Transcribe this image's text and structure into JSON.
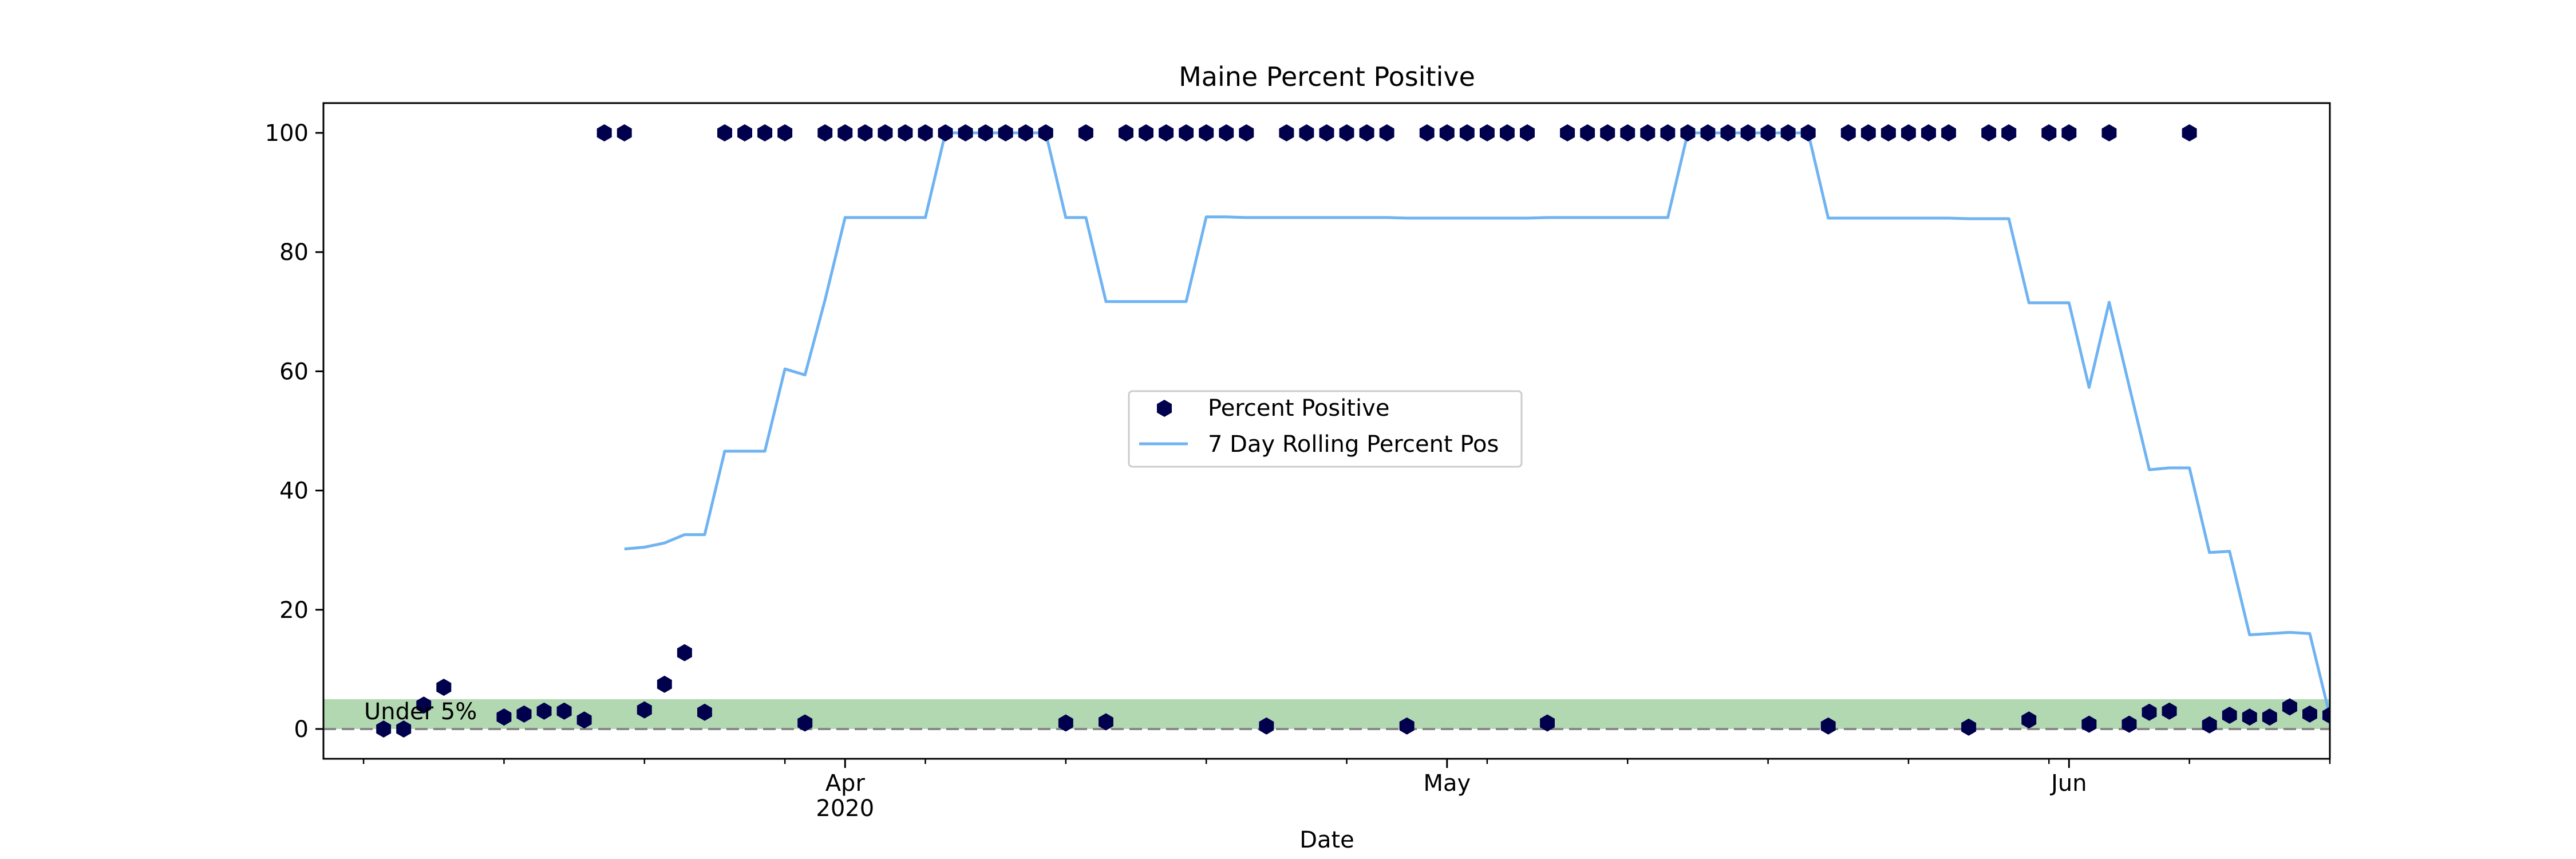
{
  "chart_data": {
    "type": "line",
    "title": "Maine Percent Positive",
    "xlabel": "Date",
    "ylabel": "",
    "ylim": [
      -5,
      105
    ],
    "xlim": [
      "2020-03-06",
      "2020-06-14"
    ],
    "y_ticks": [
      0,
      20,
      40,
      60,
      80,
      100
    ],
    "x_major_ticks": [
      {
        "date": "2020-04-01",
        "label": "Apr",
        "sublabel": "2020"
      },
      {
        "date": "2020-05-01",
        "label": "May",
        "sublabel": ""
      },
      {
        "date": "2020-06-01",
        "label": "Jun",
        "sublabel": ""
      }
    ],
    "x_minor_tick_dates": [
      "2020-03-08",
      "2020-03-15",
      "2020-03-22",
      "2020-03-29",
      "2020-04-05",
      "2020-04-12",
      "2020-04-19",
      "2020-04-26",
      "2020-05-03",
      "2020-05-10",
      "2020-05-17",
      "2020-05-24",
      "2020-05-31",
      "2020-06-07",
      "2020-06-14"
    ],
    "grid": false,
    "legend_position": "center",
    "colors": {
      "points": "#00004d",
      "rolling_line": "#6fb3f2",
      "band_fill": "#b2d8b2",
      "reference_line": "#888888"
    },
    "band": {
      "y0": 0,
      "y1": 5,
      "label": "Under 5%"
    },
    "reference_line_y": 0,
    "series": [
      {
        "name": "Percent Positive",
        "kind": "scatter",
        "points": [
          {
            "x": "2020-03-09",
            "y": 0
          },
          {
            "x": "2020-03-10",
            "y": 0
          },
          {
            "x": "2020-03-11",
            "y": 4
          },
          {
            "x": "2020-03-12",
            "y": 7
          },
          {
            "x": "2020-03-15",
            "y": 2
          },
          {
            "x": "2020-03-16",
            "y": 2.5
          },
          {
            "x": "2020-03-17",
            "y": 3
          },
          {
            "x": "2020-03-18",
            "y": 3
          },
          {
            "x": "2020-03-19",
            "y": 1.5
          },
          {
            "x": "2020-03-20",
            "y": 100
          },
          {
            "x": "2020-03-21",
            "y": 100
          },
          {
            "x": "2020-03-22",
            "y": 3.2
          },
          {
            "x": "2020-03-23",
            "y": 7.5
          },
          {
            "x": "2020-03-24",
            "y": 12.8
          },
          {
            "x": "2020-03-25",
            "y": 2.8
          },
          {
            "x": "2020-03-26",
            "y": 100
          },
          {
            "x": "2020-03-27",
            "y": 100
          },
          {
            "x": "2020-03-28",
            "y": 100
          },
          {
            "x": "2020-03-29",
            "y": 100
          },
          {
            "x": "2020-03-30",
            "y": 1
          },
          {
            "x": "2020-03-31",
            "y": 100
          },
          {
            "x": "2020-04-01",
            "y": 100
          },
          {
            "x": "2020-04-02",
            "y": 100
          },
          {
            "x": "2020-04-03",
            "y": 100
          },
          {
            "x": "2020-04-04",
            "y": 100
          },
          {
            "x": "2020-04-05",
            "y": 100
          },
          {
            "x": "2020-04-06",
            "y": 100
          },
          {
            "x": "2020-04-07",
            "y": 100
          },
          {
            "x": "2020-04-08",
            "y": 100
          },
          {
            "x": "2020-04-09",
            "y": 100
          },
          {
            "x": "2020-04-10",
            "y": 100
          },
          {
            "x": "2020-04-11",
            "y": 100
          },
          {
            "x": "2020-04-12",
            "y": 1
          },
          {
            "x": "2020-04-13",
            "y": 100
          },
          {
            "x": "2020-04-14",
            "y": 1.2
          },
          {
            "x": "2020-04-15",
            "y": 100
          },
          {
            "x": "2020-04-16",
            "y": 100
          },
          {
            "x": "2020-04-17",
            "y": 100
          },
          {
            "x": "2020-04-18",
            "y": 100
          },
          {
            "x": "2020-04-19",
            "y": 100
          },
          {
            "x": "2020-04-20",
            "y": 100
          },
          {
            "x": "2020-04-21",
            "y": 100
          },
          {
            "x": "2020-04-22",
            "y": 0.5
          },
          {
            "x": "2020-04-23",
            "y": 100
          },
          {
            "x": "2020-04-24",
            "y": 100
          },
          {
            "x": "2020-04-25",
            "y": 100
          },
          {
            "x": "2020-04-26",
            "y": 100
          },
          {
            "x": "2020-04-27",
            "y": 100
          },
          {
            "x": "2020-04-28",
            "y": 100
          },
          {
            "x": "2020-04-29",
            "y": 0.5
          },
          {
            "x": "2020-04-30",
            "y": 100
          },
          {
            "x": "2020-05-01",
            "y": 100
          },
          {
            "x": "2020-05-02",
            "y": 100
          },
          {
            "x": "2020-05-03",
            "y": 100
          },
          {
            "x": "2020-05-04",
            "y": 100
          },
          {
            "x": "2020-05-05",
            "y": 100
          },
          {
            "x": "2020-05-06",
            "y": 1
          },
          {
            "x": "2020-05-07",
            "y": 100
          },
          {
            "x": "2020-05-08",
            "y": 100
          },
          {
            "x": "2020-05-09",
            "y": 100
          },
          {
            "x": "2020-05-10",
            "y": 100
          },
          {
            "x": "2020-05-11",
            "y": 100
          },
          {
            "x": "2020-05-12",
            "y": 100
          },
          {
            "x": "2020-05-13",
            "y": 100
          },
          {
            "x": "2020-05-14",
            "y": 100
          },
          {
            "x": "2020-05-15",
            "y": 100
          },
          {
            "x": "2020-05-16",
            "y": 100
          },
          {
            "x": "2020-05-17",
            "y": 100
          },
          {
            "x": "2020-05-18",
            "y": 100
          },
          {
            "x": "2020-05-19",
            "y": 100
          },
          {
            "x": "2020-05-20",
            "y": 0.5
          },
          {
            "x": "2020-05-21",
            "y": 100
          },
          {
            "x": "2020-05-22",
            "y": 100
          },
          {
            "x": "2020-05-23",
            "y": 100
          },
          {
            "x": "2020-05-24",
            "y": 100
          },
          {
            "x": "2020-05-25",
            "y": 100
          },
          {
            "x": "2020-05-26",
            "y": 100
          },
          {
            "x": "2020-05-27",
            "y": 0.3
          },
          {
            "x": "2020-05-28",
            "y": 100
          },
          {
            "x": "2020-05-29",
            "y": 100
          },
          {
            "x": "2020-05-30",
            "y": 1.5
          },
          {
            "x": "2020-05-31",
            "y": 100
          },
          {
            "x": "2020-06-01",
            "y": 100
          },
          {
            "x": "2020-06-02",
            "y": 0.8
          },
          {
            "x": "2020-06-03",
            "y": 100
          },
          {
            "x": "2020-06-04",
            "y": 0.8
          },
          {
            "x": "2020-06-05",
            "y": 2.8
          },
          {
            "x": "2020-06-06",
            "y": 3
          },
          {
            "x": "2020-06-07",
            "y": 100
          },
          {
            "x": "2020-06-08",
            "y": 0.7
          },
          {
            "x": "2020-06-09",
            "y": 2.3
          },
          {
            "x": "2020-06-10",
            "y": 2
          },
          {
            "x": "2020-06-11",
            "y": 2
          },
          {
            "x": "2020-06-12",
            "y": 3.7
          },
          {
            "x": "2020-06-13",
            "y": 2.5
          },
          {
            "x": "2020-06-14",
            "y": 2.3
          },
          {
            "x": "2020-06-15",
            "y": 1.2
          }
        ]
      },
      {
        "name": "7 Day Rolling Percent Pos",
        "kind": "line",
        "points": [
          {
            "x": "2020-03-21",
            "y": 30.2
          },
          {
            "x": "2020-03-22",
            "y": 30.5
          },
          {
            "x": "2020-03-23",
            "y": 31.2
          },
          {
            "x": "2020-03-24",
            "y": 32.6
          },
          {
            "x": "2020-03-25",
            "y": 32.6
          },
          {
            "x": "2020-03-26",
            "y": 46.6
          },
          {
            "x": "2020-03-27",
            "y": 46.6
          },
          {
            "x": "2020-03-28",
            "y": 46.6
          },
          {
            "x": "2020-03-29",
            "y": 60.4
          },
          {
            "x": "2020-03-30",
            "y": 59.4
          },
          {
            "x": "2020-03-31",
            "y": 72
          },
          {
            "x": "2020-04-01",
            "y": 85.8
          },
          {
            "x": "2020-04-02",
            "y": 85.8
          },
          {
            "x": "2020-04-03",
            "y": 85.8
          },
          {
            "x": "2020-04-04",
            "y": 85.8
          },
          {
            "x": "2020-04-05",
            "y": 85.8
          },
          {
            "x": "2020-04-06",
            "y": 100
          },
          {
            "x": "2020-04-07",
            "y": 100
          },
          {
            "x": "2020-04-08",
            "y": 100
          },
          {
            "x": "2020-04-09",
            "y": 100
          },
          {
            "x": "2020-04-10",
            "y": 100
          },
          {
            "x": "2020-04-11",
            "y": 100
          },
          {
            "x": "2020-04-12",
            "y": 85.8
          },
          {
            "x": "2020-04-13",
            "y": 85.8
          },
          {
            "x": "2020-04-14",
            "y": 71.7
          },
          {
            "x": "2020-04-15",
            "y": 71.7
          },
          {
            "x": "2020-04-16",
            "y": 71.7
          },
          {
            "x": "2020-04-17",
            "y": 71.7
          },
          {
            "x": "2020-04-18",
            "y": 71.7
          },
          {
            "x": "2020-04-19",
            "y": 85.9
          },
          {
            "x": "2020-04-20",
            "y": 85.9
          },
          {
            "x": "2020-04-21",
            "y": 85.8
          },
          {
            "x": "2020-04-22",
            "y": 85.8
          },
          {
            "x": "2020-04-23",
            "y": 85.8
          },
          {
            "x": "2020-04-24",
            "y": 85.8
          },
          {
            "x": "2020-04-25",
            "y": 85.8
          },
          {
            "x": "2020-04-26",
            "y": 85.8
          },
          {
            "x": "2020-04-27",
            "y": 85.8
          },
          {
            "x": "2020-04-28",
            "y": 85.8
          },
          {
            "x": "2020-04-29",
            "y": 85.7
          },
          {
            "x": "2020-04-30",
            "y": 85.7
          },
          {
            "x": "2020-05-01",
            "y": 85.7
          },
          {
            "x": "2020-05-02",
            "y": 85.7
          },
          {
            "x": "2020-05-03",
            "y": 85.7
          },
          {
            "x": "2020-05-04",
            "y": 85.7
          },
          {
            "x": "2020-05-05",
            "y": 85.7
          },
          {
            "x": "2020-05-06",
            "y": 85.8
          },
          {
            "x": "2020-05-07",
            "y": 85.8
          },
          {
            "x": "2020-05-08",
            "y": 85.8
          },
          {
            "x": "2020-05-09",
            "y": 85.8
          },
          {
            "x": "2020-05-10",
            "y": 85.8
          },
          {
            "x": "2020-05-11",
            "y": 85.8
          },
          {
            "x": "2020-05-12",
            "y": 85.8
          },
          {
            "x": "2020-05-13",
            "y": 100
          },
          {
            "x": "2020-05-14",
            "y": 100
          },
          {
            "x": "2020-05-15",
            "y": 100
          },
          {
            "x": "2020-05-16",
            "y": 100
          },
          {
            "x": "2020-05-17",
            "y": 100
          },
          {
            "x": "2020-05-18",
            "y": 100
          },
          {
            "x": "2020-05-19",
            "y": 100
          },
          {
            "x": "2020-05-20",
            "y": 85.7
          },
          {
            "x": "2020-05-21",
            "y": 85.7
          },
          {
            "x": "2020-05-22",
            "y": 85.7
          },
          {
            "x": "2020-05-23",
            "y": 85.7
          },
          {
            "x": "2020-05-24",
            "y": 85.7
          },
          {
            "x": "2020-05-25",
            "y": 85.7
          },
          {
            "x": "2020-05-26",
            "y": 85.7
          },
          {
            "x": "2020-05-27",
            "y": 85.6
          },
          {
            "x": "2020-05-28",
            "y": 85.6
          },
          {
            "x": "2020-05-29",
            "y": 85.6
          },
          {
            "x": "2020-05-30",
            "y": 71.5
          },
          {
            "x": "2020-05-31",
            "y": 71.5
          },
          {
            "x": "2020-06-01",
            "y": 71.5
          },
          {
            "x": "2020-06-02",
            "y": 57.3
          },
          {
            "x": "2020-06-03",
            "y": 71.6
          },
          {
            "x": "2020-06-04",
            "y": 57.5
          },
          {
            "x": "2020-06-05",
            "y": 43.5
          },
          {
            "x": "2020-06-06",
            "y": 43.8
          },
          {
            "x": "2020-06-07",
            "y": 43.8
          },
          {
            "x": "2020-06-08",
            "y": 29.6
          },
          {
            "x": "2020-06-09",
            "y": 29.8
          },
          {
            "x": "2020-06-10",
            "y": 15.8
          },
          {
            "x": "2020-06-11",
            "y": 16
          },
          {
            "x": "2020-06-12",
            "y": 16.2
          },
          {
            "x": "2020-06-13",
            "y": 16
          },
          {
            "x": "2020-06-14",
            "y": 2.2
          },
          {
            "x": "2020-06-15",
            "y": 2
          }
        ]
      }
    ]
  }
}
